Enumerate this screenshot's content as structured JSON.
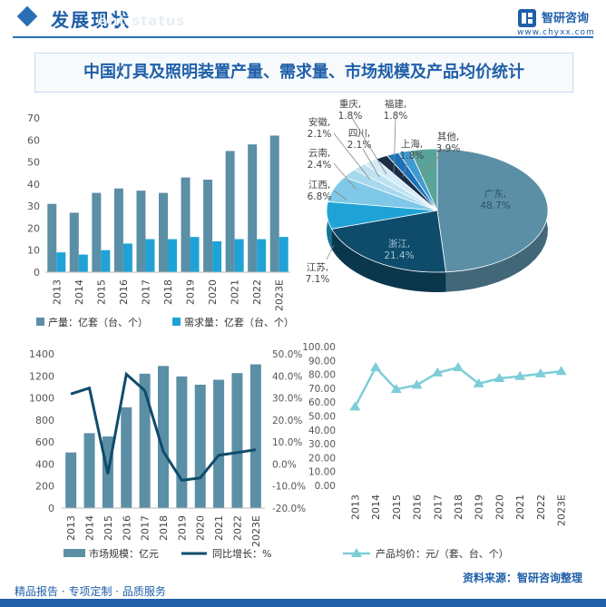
{
  "header": {
    "title": "发展现状",
    "subtitle_en": "ent status"
  },
  "logo": {
    "name": "智研咨询",
    "url": "www.chyxx.com"
  },
  "main_title": "中国灯具及照明装置产量、需求量、市场规模及产品均价统计",
  "colors": {
    "primary": "#5b8fa6",
    "secondary": "#1fa3d6",
    "dark": "#0f4c6b",
    "accent": "#7dcdd8",
    "header": "#1f5fa8"
  },
  "chart_data": [
    {
      "type": "bar",
      "categories": [
        "2013",
        "2014",
        "2015",
        "2016",
        "2017",
        "2018",
        "2019",
        "2020",
        "2021",
        "2022",
        "2023E"
      ],
      "series": [
        {
          "name": "产量：亿套（台、个）",
          "values": [
            31,
            27,
            36,
            38,
            37,
            36,
            43,
            42,
            55,
            58,
            62
          ],
          "color": "#5b8fa6"
        },
        {
          "name": "需求量：亿套（台、个）",
          "values": [
            9,
            8,
            10,
            13,
            15,
            15,
            16,
            14,
            15,
            15,
            16
          ],
          "color": "#1fa3d6"
        }
      ],
      "ylim": [
        0,
        70
      ],
      "yticks": [
        "0",
        "10",
        "20",
        "30",
        "40",
        "50",
        "60",
        "70"
      ],
      "legend": "bottom"
    },
    {
      "type": "pie",
      "slices": [
        {
          "label": "广东,",
          "pct": "48.7%",
          "value": 48.7,
          "color": "#5b8fa6"
        },
        {
          "label": "浙江,",
          "pct": "21.4%",
          "value": 21.4,
          "color": "#0f4c6b"
        },
        {
          "label": "江苏,",
          "pct": "7.1%",
          "value": 7.1,
          "color": "#1fa3d6"
        },
        {
          "label": "江西,",
          "pct": "6.8%",
          "value": 6.8,
          "color": "#7fc8e8"
        },
        {
          "label": "云南,",
          "pct": "2.4%",
          "value": 2.4,
          "color": "#a7d8ee"
        },
        {
          "label": "安徽,",
          "pct": "2.1%",
          "value": 2.1,
          "color": "#bfe2f2"
        },
        {
          "label": "四川,",
          "pct": "2.1%",
          "value": 2.1,
          "color": "#d3ebf7"
        },
        {
          "label": "重庆,",
          "pct": "1.8%",
          "value": 1.8,
          "color": "#1b2e46"
        },
        {
          "label": "福建,",
          "pct": "1.8%",
          "value": 1.8,
          "color": "#1a73b8"
        },
        {
          "label": "上海,",
          "pct": "1.8%",
          "value": 1.8,
          "color": "#3d9bd4"
        },
        {
          "label": "其他,",
          "pct": "3.9%",
          "value": 3.9,
          "color": "#5aa39a"
        }
      ]
    },
    {
      "type": "bar",
      "categories": [
        "2013",
        "2014",
        "2015",
        "2016",
        "2017",
        "2018",
        "2019",
        "2020",
        "2021",
        "2022",
        "2023E"
      ],
      "series": [
        {
          "name": "市场规模：亿元",
          "kind": "bar",
          "values": [
            505,
            680,
            650,
            915,
            1220,
            1290,
            1195,
            1120,
            1165,
            1225,
            1305
          ],
          "color": "#5b8fa6"
        },
        {
          "name": "同比增长：%",
          "kind": "line",
          "values": [
            31.8,
            34.5,
            -4.5,
            40.8,
            33.3,
            5.7,
            -7.4,
            -6.3,
            4.0,
            5.2,
            6.5
          ],
          "color": "#0f4c6b"
        }
      ],
      "ylim": [
        0,
        1400
      ],
      "yticks": [
        "0",
        "200",
        "400",
        "600",
        "800",
        "1000",
        "1200",
        "1400"
      ],
      "y2lim": [
        -20,
        50
      ],
      "y2ticks": [
        "-20.0%",
        "-10.0%",
        "0.0%",
        "10.0%",
        "20.0%",
        "30.0%",
        "40.0%",
        "50.0%"
      ],
      "legend": "bottom"
    },
    {
      "type": "line",
      "categories": [
        "2013",
        "2014",
        "2015",
        "2016",
        "2017",
        "2018",
        "2019",
        "2020",
        "2021",
        "2022",
        "2023E"
      ],
      "series": [
        {
          "name": "产品均价：元/（套、台、个）",
          "values": [
            56.6,
            85.0,
            69.2,
            72.3,
            81.1,
            85.0,
            73.3,
            77.1,
            78.6,
            80.5,
            82.2
          ],
          "color": "#7dcdd8"
        }
      ],
      "ylim": [
        0,
        100
      ],
      "yticks": [
        "0.00",
        "10.00",
        "20.00",
        "30.00",
        "40.00",
        "50.00",
        "60.00",
        "70.00",
        "80.00",
        "90.00",
        "100.00"
      ],
      "legend": "bottom"
    }
  ],
  "footer": {
    "left": "精品报告 · 专项定制 · 品质服务",
    "right": "资料来源：智研咨询整理"
  }
}
